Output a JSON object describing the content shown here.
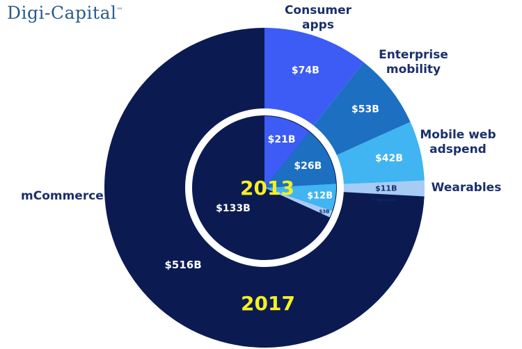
{
  "brand": {
    "name": "Digi-Capital",
    "tm": "™",
    "watermark": "© Digi-Capital"
  },
  "chart_data": {
    "type": "pie",
    "title": "",
    "categories": [
      "Consumer apps",
      "Enterprise mobility",
      "Mobile web adspend",
      "Wearables",
      "mCommerce"
    ],
    "category_labels": [
      [
        "Consumer",
        "apps"
      ],
      [
        "Enterprise",
        "mobility"
      ],
      [
        "Mobile web",
        "adspend"
      ],
      [
        "Wearables"
      ],
      [
        "mCommerce"
      ]
    ],
    "series": [
      {
        "name": "2017",
        "values": [
          74,
          53,
          42,
          11,
          516
        ],
        "labels": [
          "$74B",
          "$53B",
          "$42B",
          "$11B",
          "$516B"
        ]
      },
      {
        "name": "2013",
        "values": [
          21,
          26,
          12,
          3,
          133
        ],
        "labels": [
          "$21B",
          "$26B",
          "$12B",
          "$3B",
          "$133B"
        ]
      }
    ],
    "colors": [
      "#3d5cf5",
      "#1d6fc2",
      "#41b4f2",
      "#a6ccf6",
      "#0b1b52"
    ],
    "ring_color": "#ffffff",
    "year_color": "#f5f020",
    "legend": "none"
  }
}
